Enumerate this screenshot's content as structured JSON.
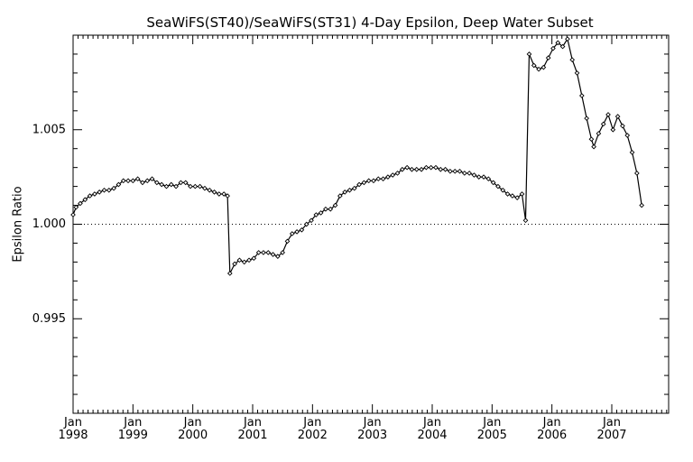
{
  "chart_data": {
    "type": "line",
    "title": "SeaWiFS(ST40)/SeaWiFS(ST31) 4-Day Epsilon, Deep Water Subset",
    "xlabel": "",
    "ylabel": "Epsilon Ratio",
    "ylim": [
      0.99,
      1.01
    ],
    "xlim": [
      1998.0,
      2007.95
    ],
    "yticks": [
      {
        "value": 0.995,
        "label": "0.995"
      },
      {
        "value": 1.0,
        "label": "1.000"
      },
      {
        "value": 1.005,
        "label": "1.005"
      }
    ],
    "xticks": [
      {
        "value": 1998.0,
        "month": "Jan",
        "year": "1998"
      },
      {
        "value": 1999.0,
        "month": "Jan",
        "year": "1999"
      },
      {
        "value": 2000.0,
        "month": "Jan",
        "year": "2000"
      },
      {
        "value": 2001.0,
        "month": "Jan",
        "year": "2001"
      },
      {
        "value": 2002.0,
        "month": "Jan",
        "year": "2002"
      },
      {
        "value": 2003.0,
        "month": "Jan",
        "year": "2003"
      },
      {
        "value": 2004.0,
        "month": "Jan",
        "year": "2004"
      },
      {
        "value": 2005.0,
        "month": "Jan",
        "year": "2005"
      },
      {
        "value": 2006.0,
        "month": "Jan",
        "year": "2006"
      },
      {
        "value": 2007.0,
        "month": "Jan",
        "year": "2007"
      }
    ],
    "reference_line": {
      "value": 1.0,
      "style": "dotted"
    },
    "grid": false,
    "series": [
      {
        "marker": "diamond",
        "color": "#000000",
        "points": [
          [
            1998.0,
            1.0005
          ],
          [
            1998.05,
            1.0009
          ],
          [
            1998.12,
            1.0011
          ],
          [
            1998.2,
            1.0013
          ],
          [
            1998.28,
            1.0015
          ],
          [
            1998.36,
            1.0016
          ],
          [
            1998.44,
            1.0017
          ],
          [
            1998.52,
            1.0018
          ],
          [
            1998.6,
            1.0018
          ],
          [
            1998.68,
            1.0019
          ],
          [
            1998.76,
            1.0021
          ],
          [
            1998.84,
            1.0023
          ],
          [
            1998.92,
            1.0023
          ],
          [
            1999.0,
            1.0023
          ],
          [
            1999.08,
            1.0024
          ],
          [
            1999.16,
            1.0022
          ],
          [
            1999.24,
            1.0023
          ],
          [
            1999.32,
            1.0024
          ],
          [
            1999.4,
            1.0022
          ],
          [
            1999.48,
            1.0021
          ],
          [
            1999.56,
            1.002
          ],
          [
            1999.64,
            1.0021
          ],
          [
            1999.72,
            1.002
          ],
          [
            1999.8,
            1.0022
          ],
          [
            1999.88,
            1.0022
          ],
          [
            1999.96,
            1.002
          ],
          [
            2000.04,
            1.002
          ],
          [
            2000.12,
            1.002
          ],
          [
            2000.2,
            1.0019
          ],
          [
            2000.28,
            1.0018
          ],
          [
            2000.36,
            1.0017
          ],
          [
            2000.44,
            1.0016
          ],
          [
            2000.52,
            1.0016
          ],
          [
            2000.58,
            1.0015
          ],
          [
            2000.62,
            0.9974
          ],
          [
            2000.7,
            0.9979
          ],
          [
            2000.78,
            0.9981
          ],
          [
            2000.86,
            0.998
          ],
          [
            2000.94,
            0.9981
          ],
          [
            2001.02,
            0.9982
          ],
          [
            2001.1,
            0.9985
          ],
          [
            2001.18,
            0.9985
          ],
          [
            2001.26,
            0.9985
          ],
          [
            2001.34,
            0.9984
          ],
          [
            2001.42,
            0.9983
          ],
          [
            2001.5,
            0.9985
          ],
          [
            2001.58,
            0.9991
          ],
          [
            2001.66,
            0.9995
          ],
          [
            2001.74,
            0.9996
          ],
          [
            2001.82,
            0.9997
          ],
          [
            2001.9,
            1.0
          ],
          [
            2001.98,
            1.0002
          ],
          [
            2002.06,
            1.0005
          ],
          [
            2002.14,
            1.0006
          ],
          [
            2002.22,
            1.0008
          ],
          [
            2002.3,
            1.0008
          ],
          [
            2002.38,
            1.001
          ],
          [
            2002.46,
            1.0015
          ],
          [
            2002.54,
            1.0017
          ],
          [
            2002.62,
            1.0018
          ],
          [
            2002.7,
            1.0019
          ],
          [
            2002.78,
            1.0021
          ],
          [
            2002.86,
            1.0022
          ],
          [
            2002.94,
            1.0023
          ],
          [
            2003.02,
            1.0023
          ],
          [
            2003.1,
            1.0024
          ],
          [
            2003.18,
            1.0024
          ],
          [
            2003.26,
            1.0025
          ],
          [
            2003.34,
            1.0026
          ],
          [
            2003.42,
            1.0027
          ],
          [
            2003.5,
            1.0029
          ],
          [
            2003.58,
            1.003
          ],
          [
            2003.66,
            1.0029
          ],
          [
            2003.74,
            1.0029
          ],
          [
            2003.82,
            1.0029
          ],
          [
            2003.9,
            1.003
          ],
          [
            2003.98,
            1.003
          ],
          [
            2004.06,
            1.003
          ],
          [
            2004.14,
            1.0029
          ],
          [
            2004.22,
            1.0029
          ],
          [
            2004.3,
            1.0028
          ],
          [
            2004.38,
            1.0028
          ],
          [
            2004.46,
            1.0028
          ],
          [
            2004.54,
            1.0027
          ],
          [
            2004.62,
            1.0027
          ],
          [
            2004.7,
            1.0026
          ],
          [
            2004.78,
            1.0025
          ],
          [
            2004.86,
            1.0025
          ],
          [
            2004.94,
            1.0024
          ],
          [
            2005.02,
            1.0022
          ],
          [
            2005.1,
            1.002
          ],
          [
            2005.18,
            1.0018
          ],
          [
            2005.26,
            1.0016
          ],
          [
            2005.34,
            1.0015
          ],
          [
            2005.42,
            1.0014
          ],
          [
            2005.5,
            1.0016
          ],
          [
            2005.56,
            1.0002
          ],
          [
            2005.62,
            1.009
          ],
          [
            2005.7,
            1.0084
          ],
          [
            2005.78,
            1.0082
          ],
          [
            2005.86,
            1.0083
          ],
          [
            2005.94,
            1.0088
          ],
          [
            2006.02,
            1.0093
          ],
          [
            2006.1,
            1.0096
          ],
          [
            2006.18,
            1.0094
          ],
          [
            2006.26,
            1.0098
          ],
          [
            2006.34,
            1.0087
          ],
          [
            2006.42,
            1.008
          ],
          [
            2006.5,
            1.0068
          ],
          [
            2006.58,
            1.0056
          ],
          [
            2006.66,
            1.0045
          ],
          [
            2006.7,
            1.0041
          ],
          [
            2006.78,
            1.0048
          ],
          [
            2006.86,
            1.0053
          ],
          [
            2006.94,
            1.0058
          ],
          [
            2007.02,
            1.005
          ],
          [
            2007.1,
            1.0057
          ],
          [
            2007.18,
            1.0052
          ],
          [
            2007.26,
            1.0047
          ],
          [
            2007.34,
            1.0038
          ],
          [
            2007.42,
            1.0027
          ],
          [
            2007.5,
            1.001
          ]
        ]
      }
    ]
  }
}
